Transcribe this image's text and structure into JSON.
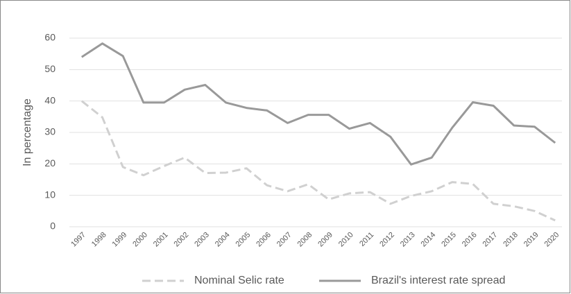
{
  "chart_data": {
    "type": "line",
    "y_label": "In percentage",
    "categories": [
      "1997",
      "1998",
      "1999",
      "2000",
      "2001",
      "2002",
      "2003",
      "2004",
      "2005",
      "2006",
      "2007",
      "2008",
      "2009",
      "2010",
      "2011",
      "2012",
      "2013",
      "2014",
      "2015",
      "2016",
      "2017",
      "2018",
      "2019",
      "2020"
    ],
    "series": [
      {
        "name": "Nominal Selic rate",
        "color": "#d0d0d0",
        "dashed": true,
        "values": [
          40,
          34.8,
          19,
          16.4,
          19.3,
          22,
          17.1,
          17.2,
          18.6,
          13.2,
          11.3,
          13.5,
          8.7,
          10.6,
          11,
          7.3,
          9.8,
          11.3,
          14.2,
          13.6,
          7.3,
          6.5,
          5,
          2
        ]
      },
      {
        "name": "Brazil's interest rate spread",
        "color": "#999999",
        "dashed": false,
        "values": [
          54,
          58.3,
          54.3,
          39.5,
          39.5,
          43.6,
          45.1,
          39.5,
          37.8,
          37,
          33,
          35.6,
          35.6,
          31.2,
          33,
          28.6,
          19.8,
          22,
          31.5,
          39.6,
          38.5,
          32.2,
          31.8,
          26.7
        ]
      }
    ],
    "ylim": [
      0,
      60
    ],
    "yticks": [
      0,
      10,
      20,
      30,
      40,
      50,
      60
    ],
    "grid": true,
    "legend": "bottom"
  }
}
